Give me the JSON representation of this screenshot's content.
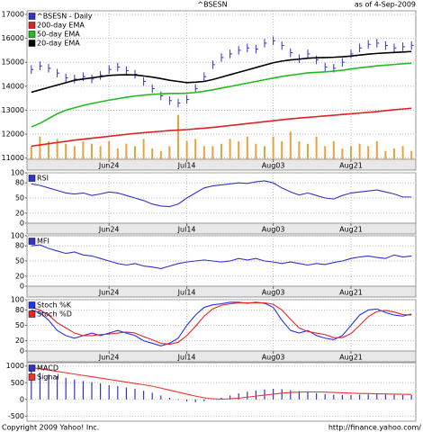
{
  "chart_data": [
    {
      "type": "hlc",
      "title": "^BSESN",
      "subtitle": "as of  4-Sep-2009",
      "categories": [
        null,
        null,
        null,
        null,
        null,
        null,
        null,
        null,
        null,
        "Jun24",
        null,
        null,
        null,
        null,
        null,
        null,
        null,
        null,
        "Jul14",
        null,
        null,
        null,
        null,
        null,
        null,
        null,
        null,
        null,
        "Aug03",
        null,
        null,
        null,
        null,
        null,
        null,
        null,
        null,
        "Aug21",
        null,
        null,
        null,
        null,
        null,
        null,
        null
      ],
      "ylim": [
        10950,
        17150
      ],
      "yticks": [
        11000,
        12000,
        13000,
        14000,
        15000,
        16000,
        17000
      ],
      "grid": true,
      "series": [
        {
          "name": "^BSESN - Daily",
          "color": "#3333cc",
          "type": "hlc",
          "high": [
            14880,
            15030,
            14930,
            14730,
            14530,
            14480,
            14580,
            14480,
            14630,
            14880,
            14980,
            14830,
            14680,
            14380,
            14080,
            13780,
            13580,
            13480,
            13630,
            14080,
            14580,
            15080,
            15380,
            15530,
            15680,
            15780,
            15730,
            15980,
            16080,
            15880,
            15580,
            15330,
            15530,
            15280,
            14980,
            14930,
            15180,
            15530,
            15780,
            15930,
            15980,
            15880,
            15780,
            15830,
            15880
          ],
          "low": [
            14520,
            14670,
            14570,
            14370,
            14170,
            14120,
            14220,
            14120,
            14270,
            14520,
            14620,
            14470,
            14320,
            14020,
            13720,
            13420,
            13220,
            13120,
            13270,
            13720,
            14220,
            14720,
            15020,
            15170,
            15320,
            15420,
            15370,
            15620,
            15720,
            15520,
            15220,
            14970,
            15170,
            14920,
            14620,
            14570,
            14820,
            15170,
            15420,
            15570,
            15620,
            15520,
            15420,
            15470,
            15520
          ],
          "values": [
            14700,
            14850,
            14750,
            14550,
            14350,
            14300,
            14400,
            14300,
            14450,
            14700,
            14800,
            14650,
            14500,
            14200,
            13900,
            13600,
            13400,
            13300,
            13450,
            13900,
            14400,
            14900,
            15200,
            15350,
            15500,
            15600,
            15550,
            15800,
            15900,
            15700,
            15400,
            15150,
            15350,
            15100,
            14800,
            14750,
            15000,
            15350,
            15600,
            15750,
            15800,
            15700,
            15600,
            15650,
            15700
          ]
        },
        {
          "name": "200-day EMA",
          "color": "#dd2222",
          "type": "line",
          "values": [
            11500,
            11550,
            11600,
            11650,
            11700,
            11750,
            11790,
            11830,
            11870,
            11910,
            11950,
            11990,
            12030,
            12060,
            12090,
            12120,
            12150,
            12170,
            12190,
            12220,
            12250,
            12280,
            12320,
            12360,
            12400,
            12440,
            12480,
            12520,
            12560,
            12600,
            12640,
            12670,
            12700,
            12730,
            12760,
            12790,
            12820,
            12850,
            12880,
            12910,
            12940,
            12980,
            13020,
            13050,
            13080
          ]
        },
        {
          "name": "50-day EMA",
          "color": "#22bb22",
          "type": "line",
          "values": [
            12300,
            12450,
            12650,
            12850,
            13000,
            13100,
            13200,
            13280,
            13350,
            13420,
            13480,
            13540,
            13590,
            13630,
            13660,
            13680,
            13700,
            13700,
            13710,
            13740,
            13790,
            13850,
            13920,
            13990,
            14060,
            14130,
            14200,
            14270,
            14340,
            14410,
            14460,
            14510,
            14560,
            14580,
            14600,
            14630,
            14670,
            14720,
            14770,
            14810,
            14850,
            14880,
            14910,
            14940,
            14960
          ]
        },
        {
          "name": "20-day EMA",
          "color": "#000000",
          "type": "line",
          "values": [
            13750,
            13850,
            13950,
            14050,
            14150,
            14250,
            14300,
            14350,
            14400,
            14450,
            14470,
            14480,
            14470,
            14430,
            14380,
            14320,
            14250,
            14200,
            14150,
            14170,
            14200,
            14280,
            14380,
            14480,
            14580,
            14680,
            14780,
            14880,
            14980,
            15050,
            15100,
            15130,
            15170,
            15190,
            15200,
            15210,
            15230,
            15260,
            15300,
            15340,
            15370,
            15390,
            15410,
            15430,
            15450
          ]
        },
        {
          "color": "#e8a23c",
          "type": "bar",
          "values": [
            11500,
            11900,
            11700,
            11800,
            11600,
            11500,
            11700,
            11600,
            11500,
            11700,
            11400,
            11600,
            11500,
            11800,
            11400,
            11300,
            11500,
            12800,
            11700,
            11800,
            11500,
            11500,
            11600,
            11800,
            11700,
            11900,
            11600,
            11500,
            11900,
            11700,
            12100,
            11700,
            11600,
            11900,
            11500,
            11700,
            11400,
            11500,
            11600,
            11500,
            11700,
            11300,
            11400,
            11500,
            11300
          ]
        }
      ]
    },
    {
      "type": "line",
      "categories": [
        null,
        null,
        null,
        null,
        null,
        null,
        null,
        null,
        null,
        "Jun24",
        null,
        null,
        null,
        null,
        null,
        null,
        null,
        null,
        "Jul14",
        null,
        null,
        null,
        null,
        null,
        null,
        null,
        null,
        null,
        "Aug03",
        null,
        null,
        null,
        null,
        null,
        null,
        null,
        null,
        "Aug21",
        null,
        null,
        null,
        null,
        null,
        null,
        null
      ],
      "ylim": [
        0,
        100
      ],
      "yticks": [
        0,
        20,
        50,
        80,
        100
      ],
      "grid": true,
      "series": [
        {
          "name": "RSI",
          "color": "#3333cc",
          "values": [
            78,
            75,
            70,
            65,
            60,
            58,
            60,
            55,
            58,
            62,
            60,
            55,
            50,
            45,
            38,
            34,
            33,
            38,
            50,
            60,
            70,
            74,
            76,
            78,
            80,
            79,
            82,
            84,
            80,
            70,
            62,
            56,
            60,
            55,
            50,
            48,
            55,
            60,
            62,
            64,
            66,
            62,
            58,
            52,
            52
          ]
        }
      ]
    },
    {
      "type": "line",
      "categories": [
        null,
        null,
        null,
        null,
        null,
        null,
        null,
        null,
        null,
        "Jun24",
        null,
        null,
        null,
        null,
        null,
        null,
        null,
        null,
        "Jul14",
        null,
        null,
        null,
        null,
        null,
        null,
        null,
        null,
        null,
        "Aug03",
        null,
        null,
        null,
        null,
        null,
        null,
        null,
        null,
        "Aug21",
        null,
        null,
        null,
        null,
        null,
        null,
        null
      ],
      "ylim": [
        0,
        100
      ],
      "yticks": [
        0,
        20,
        50,
        80,
        100
      ],
      "grid": true,
      "series": [
        {
          "name": "MFI",
          "color": "#3333cc",
          "values": [
            80,
            82,
            75,
            70,
            65,
            68,
            62,
            60,
            55,
            50,
            45,
            42,
            45,
            40,
            38,
            35,
            40,
            45,
            48,
            50,
            52,
            50,
            48,
            50,
            55,
            52,
            55,
            50,
            48,
            45,
            48,
            45,
            42,
            45,
            43,
            47,
            50,
            55,
            58,
            60,
            57,
            55,
            62,
            58,
            60
          ]
        }
      ]
    },
    {
      "type": "line",
      "categories": [
        null,
        null,
        null,
        null,
        null,
        null,
        null,
        null,
        null,
        "Jun24",
        null,
        null,
        null,
        null,
        null,
        null,
        null,
        null,
        "Jul14",
        null,
        null,
        null,
        null,
        null,
        null,
        null,
        null,
        null,
        "Aug03",
        null,
        null,
        null,
        null,
        null,
        null,
        null,
        null,
        "Aug21",
        null,
        null,
        null,
        null,
        null,
        null,
        null
      ],
      "ylim": [
        0,
        100
      ],
      "yticks": [
        0,
        20,
        50,
        80,
        100
      ],
      "grid": true,
      "series": [
        {
          "name": "Stoch %K",
          "color": "#2233ee",
          "values": [
            80,
            75,
            60,
            40,
            30,
            25,
            30,
            35,
            30,
            35,
            40,
            35,
            30,
            20,
            15,
            10,
            15,
            25,
            50,
            70,
            85,
            90,
            92,
            95,
            95,
            93,
            95,
            93,
            85,
            60,
            40,
            35,
            40,
            30,
            25,
            22,
            30,
            50,
            70,
            80,
            82,
            75,
            70,
            68,
            72
          ]
        },
        {
          "name": "Stoch %D",
          "color": "#ee2222",
          "values": [
            85,
            80,
            70,
            55,
            45,
            35,
            30,
            30,
            32,
            33,
            35,
            37,
            35,
            28,
            22,
            15,
            13,
            17,
            30,
            48,
            68,
            82,
            89,
            92,
            94,
            94,
            94,
            94,
            91,
            80,
            62,
            45,
            38,
            35,
            32,
            26,
            26,
            34,
            50,
            67,
            77,
            79,
            76,
            71,
            70
          ]
        }
      ]
    },
    {
      "type": "macd",
      "ylim": [
        -650,
        1100
      ],
      "yticks": [
        -500,
        0,
        500,
        1000
      ],
      "grid": true,
      "series": [
        {
          "name": "MACD",
          "color": "#3333cc",
          "type": "bar",
          "values": [
            850,
            800,
            750,
            700,
            650,
            600,
            550,
            520,
            480,
            430,
            400,
            360,
            320,
            260,
            200,
            120,
            50,
            -20,
            -60,
            -80,
            -50,
            0,
            50,
            120,
            180,
            230,
            270,
            300,
            320,
            310,
            280,
            250,
            220,
            190,
            160,
            140,
            130,
            130,
            140,
            150,
            160,
            150,
            140,
            130,
            130
          ]
        },
        {
          "name": "Signal",
          "color": "#ee3333",
          "type": "line",
          "values": [
            950,
            920,
            880,
            840,
            800,
            760,
            720,
            680,
            640,
            600,
            560,
            520,
            480,
            440,
            400,
            340,
            280,
            220,
            160,
            100,
            50,
            20,
            10,
            20,
            40,
            70,
            100,
            130,
            160,
            190,
            210,
            220,
            225,
            225,
            220,
            210,
            200,
            190,
            180,
            175,
            170,
            165,
            160,
            155,
            150
          ]
        }
      ]
    }
  ],
  "footer": {
    "left": "Copyright 2009 Yahoo! Inc.",
    "right": "http://finance.yahoo.com/"
  }
}
